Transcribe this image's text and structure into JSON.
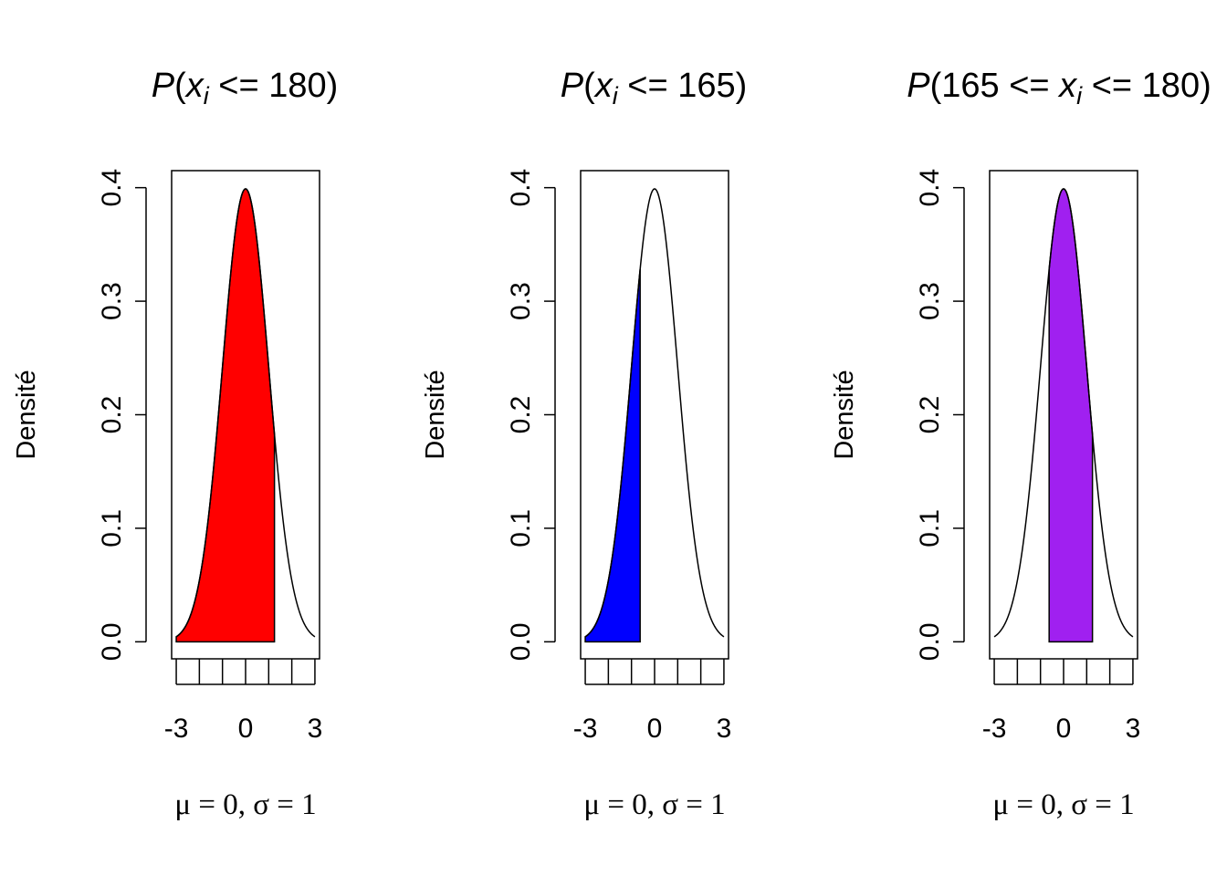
{
  "chart_data": [
    {
      "type": "area",
      "title": "P(x_i <= 180)",
      "title_parts": {
        "prefix": "P",
        "open": "(",
        "var": "x",
        "sub": "i",
        "rest": " <= 180)"
      },
      "xlabel": "μ = 0, σ = 1",
      "ylabel": "Densité",
      "xlim": [
        -3.2,
        3.2
      ],
      "ylim": [
        -0.015,
        0.415
      ],
      "x_ticks": [
        -3,
        -2,
        -1,
        0,
        1,
        2,
        3
      ],
      "x_tick_labels": [
        "-3",
        "",
        "",
        "0",
        "",
        "",
        "3"
      ],
      "y_ticks": [
        0.0,
        0.1,
        0.2,
        0.3,
        0.4
      ],
      "y_tick_labels": [
        "0.0",
        "0.1",
        "0.2",
        "0.3",
        "0.4"
      ],
      "curve": {
        "distribution": "normal",
        "mean": 0,
        "sd": 1,
        "x_range": [
          -3,
          3
        ]
      },
      "shaded": {
        "from": -3,
        "to": 1.25,
        "color": "#ff0000"
      }
    },
    {
      "type": "area",
      "title": "P(x_i <= 165)",
      "title_parts": {
        "prefix": "P",
        "open": "(",
        "var": "x",
        "sub": "i",
        "rest": " <= 165)"
      },
      "xlabel": "μ = 0, σ = 1",
      "ylabel": "Densité",
      "xlim": [
        -3.2,
        3.2
      ],
      "ylim": [
        -0.015,
        0.415
      ],
      "x_ticks": [
        -3,
        -2,
        -1,
        0,
        1,
        2,
        3
      ],
      "x_tick_labels": [
        "-3",
        "",
        "",
        "0",
        "",
        "",
        "3"
      ],
      "y_ticks": [
        0.0,
        0.1,
        0.2,
        0.3,
        0.4
      ],
      "y_tick_labels": [
        "0.0",
        "0.1",
        "0.2",
        "0.3",
        "0.4"
      ],
      "curve": {
        "distribution": "normal",
        "mean": 0,
        "sd": 1,
        "x_range": [
          -3,
          3
        ]
      },
      "shaded": {
        "from": -3,
        "to": -0.625,
        "color": "#0000ff"
      }
    },
    {
      "type": "area",
      "title": "P(165 <= x_i <= 180)",
      "title_parts": {
        "prefix": "P",
        "open": "(165 <= ",
        "var": "x",
        "sub": "i",
        "rest": " <= 180)"
      },
      "xlabel": "μ = 0, σ = 1",
      "ylabel": "Densité",
      "xlim": [
        -3.2,
        3.2
      ],
      "ylim": [
        -0.015,
        0.415
      ],
      "x_ticks": [
        -3,
        -2,
        -1,
        0,
        1,
        2,
        3
      ],
      "x_tick_labels": [
        "-3",
        "",
        "",
        "0",
        "",
        "",
        "3"
      ],
      "y_ticks": [
        0.0,
        0.1,
        0.2,
        0.3,
        0.4
      ],
      "y_tick_labels": [
        "0.0",
        "0.1",
        "0.2",
        "0.3",
        "0.4"
      ],
      "curve": {
        "distribution": "normal",
        "mean": 0,
        "sd": 1,
        "x_range": [
          -3,
          3
        ]
      },
      "shaded": {
        "from": -0.625,
        "to": 1.25,
        "color": "#a020f0"
      }
    }
  ]
}
